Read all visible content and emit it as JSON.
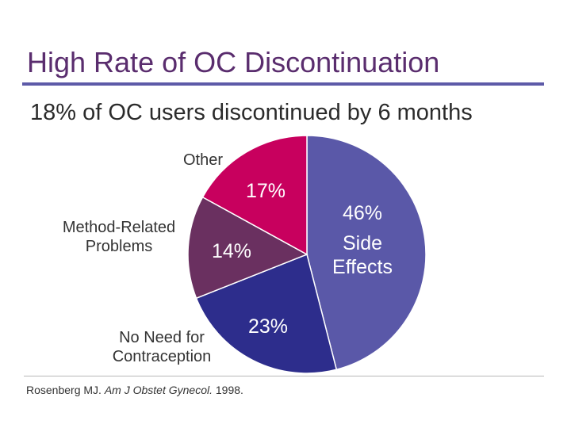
{
  "slide": {
    "title": "High Rate of OC Discontinuation",
    "subtitle": "18% of OC users discontinued by 6 months"
  },
  "citation": {
    "author": "Rosenberg MJ.",
    "journal": "Am J Obstet Gynecol.",
    "year": "1998."
  },
  "colors": {
    "title": "#5a2d6e",
    "rule": "#5d5aa8"
  },
  "chart_data": {
    "type": "pie",
    "slices": [
      {
        "category": "Side Effects",
        "label_lines": [
          "Side",
          "Effects"
        ],
        "value": 46,
        "value_label": "46%",
        "color": "#5a58a8"
      },
      {
        "category": "No Need for Contraception",
        "label_lines": [
          "No Need for",
          "Contraception"
        ],
        "value": 23,
        "value_label": "23%",
        "color": "#2d2d8c"
      },
      {
        "category": "Method-Related Problems",
        "label_lines": [
          "Method-Related",
          "Problems"
        ],
        "value": 14,
        "value_label": "14%",
        "color": "#6a3060"
      },
      {
        "category": "Other",
        "label_lines": [
          "Other"
        ],
        "value": 17,
        "value_label": "17%",
        "color": "#c8005e"
      }
    ],
    "start_angle_deg": 0,
    "direction": "clockwise"
  }
}
